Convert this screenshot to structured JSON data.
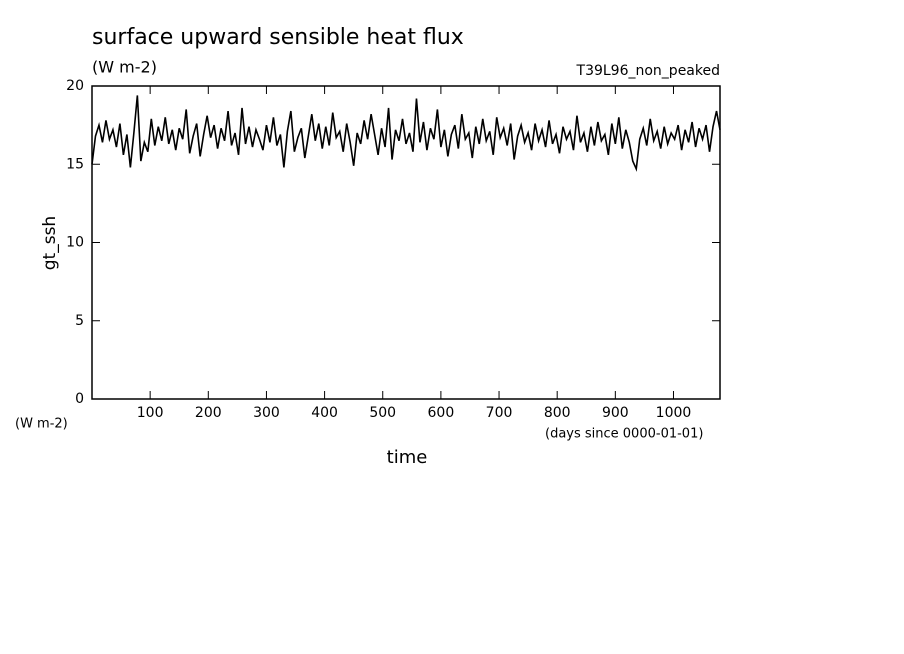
{
  "chart_data": {
    "type": "line",
    "title": "surface upward sensible heat flux",
    "subtitle": "(W m-2)",
    "experiment": "T39L96_non_peaked",
    "ylabel": "gt_ssh",
    "y_units": "(W m-2)",
    "xlabel": "time",
    "x_units": "(days since 0000-01-01)",
    "xlim": [
      0,
      1080
    ],
    "ylim": [
      0,
      20
    ],
    "xticks": [
      100,
      200,
      300,
      400,
      500,
      600,
      700,
      800,
      900,
      1000
    ],
    "yticks": [
      0,
      5,
      10,
      15,
      20
    ],
    "x": [
      0,
      6,
      12,
      18,
      24,
      30,
      36,
      42,
      48,
      54,
      60,
      66,
      72,
      78,
      84,
      90,
      96,
      102,
      108,
      114,
      120,
      126,
      132,
      138,
      144,
      150,
      156,
      162,
      168,
      174,
      180,
      186,
      192,
      198,
      204,
      210,
      216,
      222,
      228,
      234,
      240,
      246,
      252,
      258,
      264,
      270,
      276,
      282,
      288,
      294,
      300,
      306,
      312,
      318,
      324,
      330,
      336,
      342,
      348,
      354,
      360,
      366,
      372,
      378,
      384,
      390,
      396,
      402,
      408,
      414,
      420,
      426,
      432,
      438,
      444,
      450,
      456,
      462,
      468,
      474,
      480,
      486,
      492,
      498,
      504,
      510,
      516,
      522,
      528,
      534,
      540,
      546,
      552,
      558,
      564,
      570,
      576,
      582,
      588,
      594,
      600,
      606,
      612,
      618,
      624,
      630,
      636,
      642,
      648,
      654,
      660,
      666,
      672,
      678,
      684,
      690,
      696,
      702,
      708,
      714,
      720,
      726,
      732,
      738,
      744,
      750,
      756,
      762,
      768,
      774,
      780,
      786,
      792,
      798,
      804,
      810,
      816,
      822,
      828,
      834,
      840,
      846,
      852,
      858,
      864,
      870,
      876,
      882,
      888,
      894,
      900,
      906,
      912,
      918,
      924,
      930,
      936,
      942,
      948,
      954,
      960,
      966,
      972,
      978,
      984,
      990,
      996,
      1002,
      1008,
      1014,
      1020,
      1026,
      1032,
      1038,
      1044,
      1050,
      1056,
      1062,
      1068,
      1074,
      1080
    ],
    "series": [
      {
        "color": "#000000",
        "values": [
          15.0,
          16.8,
          17.5,
          16.4,
          17.8,
          16.6,
          17.2,
          16.1,
          17.6,
          15.6,
          16.9,
          14.8,
          17.0,
          19.4,
          15.2,
          16.4,
          15.8,
          17.9,
          16.2,
          17.4,
          16.5,
          18.0,
          16.3,
          17.2,
          15.9,
          17.3,
          16.6,
          18.5,
          15.7,
          16.8,
          17.6,
          15.5,
          16.9,
          18.1,
          16.7,
          17.5,
          16.0,
          17.3,
          16.5,
          18.4,
          16.2,
          17.0,
          15.6,
          18.6,
          16.3,
          17.4,
          16.1,
          17.2,
          16.6,
          15.9,
          17.5,
          16.4,
          18.0,
          16.2,
          16.9,
          14.8,
          17.1,
          18.4,
          15.8,
          16.7,
          17.3,
          15.4,
          16.8,
          18.2,
          16.5,
          17.6,
          16.0,
          17.4,
          16.2,
          18.3,
          16.7,
          17.1,
          15.8,
          17.6,
          16.4,
          14.9,
          17.0,
          16.3,
          17.8,
          16.6,
          18.2,
          16.9,
          15.6,
          17.3,
          16.1,
          18.6,
          15.3,
          17.2,
          16.5,
          17.9,
          16.3,
          17.0,
          15.8,
          19.2,
          16.4,
          17.7,
          15.9,
          17.3,
          16.6,
          18.5,
          16.1,
          17.2,
          15.5,
          16.9,
          17.5,
          16.0,
          18.2,
          16.6,
          17.0,
          15.4,
          17.4,
          16.3,
          17.9,
          16.5,
          17.1,
          15.6,
          18.0,
          16.7,
          17.3,
          16.2,
          17.6,
          15.3,
          16.8,
          17.5,
          16.4,
          17.0,
          15.9,
          17.6,
          16.5,
          17.2,
          16.1,
          17.8,
          16.3,
          16.9,
          15.7,
          17.4,
          16.6,
          17.1,
          15.9,
          18.1,
          16.4,
          17.0,
          15.8,
          17.4,
          16.2,
          17.7,
          16.5,
          16.9,
          15.6,
          17.6,
          16.3,
          18.0,
          16.0,
          17.2,
          16.4,
          15.2,
          14.7,
          16.6,
          17.3,
          16.2,
          17.9,
          16.5,
          17.1,
          16.0,
          17.4,
          16.3,
          17.0,
          16.6,
          17.5,
          15.9,
          17.2,
          16.4,
          17.7,
          16.1,
          17.3,
          16.6,
          17.5,
          15.8,
          17.4,
          18.4,
          17.2
        ]
      }
    ]
  }
}
